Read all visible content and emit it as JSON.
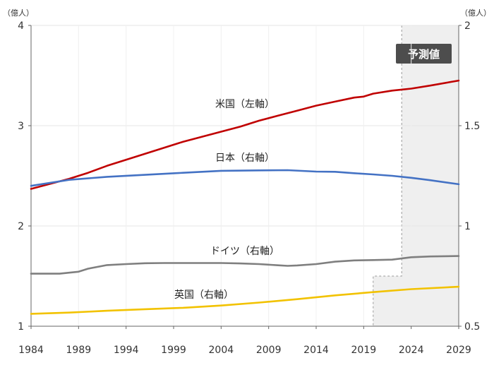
{
  "chart_data": {
    "type": "line",
    "x_ticks": [
      "1984",
      "1989",
      "1994",
      "1999",
      "2004",
      "2009",
      "2014",
      "2019",
      "2024",
      "2029"
    ],
    "xlim": [
      1984,
      2029
    ],
    "left_axis": {
      "unit": "（億人）",
      "ylim": [
        1,
        4
      ],
      "ticks": [
        "1",
        "2",
        "3",
        "4"
      ]
    },
    "right_axis": {
      "unit": "（億人）",
      "ylim": [
        0.5,
        2
      ],
      "ticks": [
        "0.5",
        "1",
        "1.5",
        "2"
      ]
    },
    "forecast": {
      "label": "予測値",
      "from_year_us_jp": 2023,
      "from_year_uk_de": 2020
    },
    "series": [
      {
        "name": "米国（左軸）",
        "axis": "left",
        "color": "#c00000",
        "x": [
          1984,
          1986,
          1988,
          1990,
          1992,
          1994,
          1996,
          1998,
          2000,
          2002,
          2004,
          2006,
          2008,
          2010,
          2012,
          2014,
          2016,
          2018,
          2019,
          2020,
          2022,
          2024,
          2026,
          2029
        ],
        "y": [
          2.37,
          2.42,
          2.47,
          2.53,
          2.6,
          2.66,
          2.72,
          2.78,
          2.84,
          2.89,
          2.94,
          2.99,
          3.05,
          3.1,
          3.15,
          3.2,
          3.24,
          3.28,
          3.29,
          3.32,
          3.35,
          3.37,
          3.4,
          3.45
        ]
      },
      {
        "name": "日本（右軸）",
        "axis": "right",
        "color": "#4472c4",
        "x": [
          1984,
          1988,
          1992,
          1996,
          2000,
          2004,
          2008,
          2011,
          2014,
          2016,
          2018,
          2020,
          2022,
          2024,
          2026,
          2029
        ],
        "y": [
          1.2,
          1.23,
          1.245,
          1.255,
          1.265,
          1.275,
          1.277,
          1.278,
          1.271,
          1.27,
          1.263,
          1.257,
          1.25,
          1.24,
          1.228,
          1.208
        ]
      },
      {
        "name": "ドイツ（右軸）",
        "axis": "right",
        "color": "#7f7f7f",
        "x": [
          1984,
          1987,
          1989,
          1990,
          1992,
          1994,
          1996,
          1998,
          2000,
          2002,
          2004,
          2006,
          2008,
          2010,
          2011,
          2012,
          2014,
          2016,
          2018,
          2020,
          2022,
          2024,
          2026,
          2029
        ],
        "y": [
          0.762,
          0.762,
          0.772,
          0.787,
          0.805,
          0.81,
          0.814,
          0.815,
          0.815,
          0.815,
          0.815,
          0.813,
          0.81,
          0.804,
          0.801,
          0.803,
          0.81,
          0.822,
          0.828,
          0.83,
          0.832,
          0.844,
          0.848,
          0.85
        ]
      },
      {
        "name": "英国（右軸）",
        "axis": "right",
        "color": "#f2c200",
        "x": [
          1984,
          1988,
          1992,
          1996,
          2000,
          2004,
          2008,
          2012,
          2016,
          2020,
          2024,
          2029
        ],
        "y": [
          0.562,
          0.568,
          0.577,
          0.585,
          0.592,
          0.603,
          0.618,
          0.635,
          0.654,
          0.67,
          0.685,
          0.697
        ]
      }
    ]
  }
}
